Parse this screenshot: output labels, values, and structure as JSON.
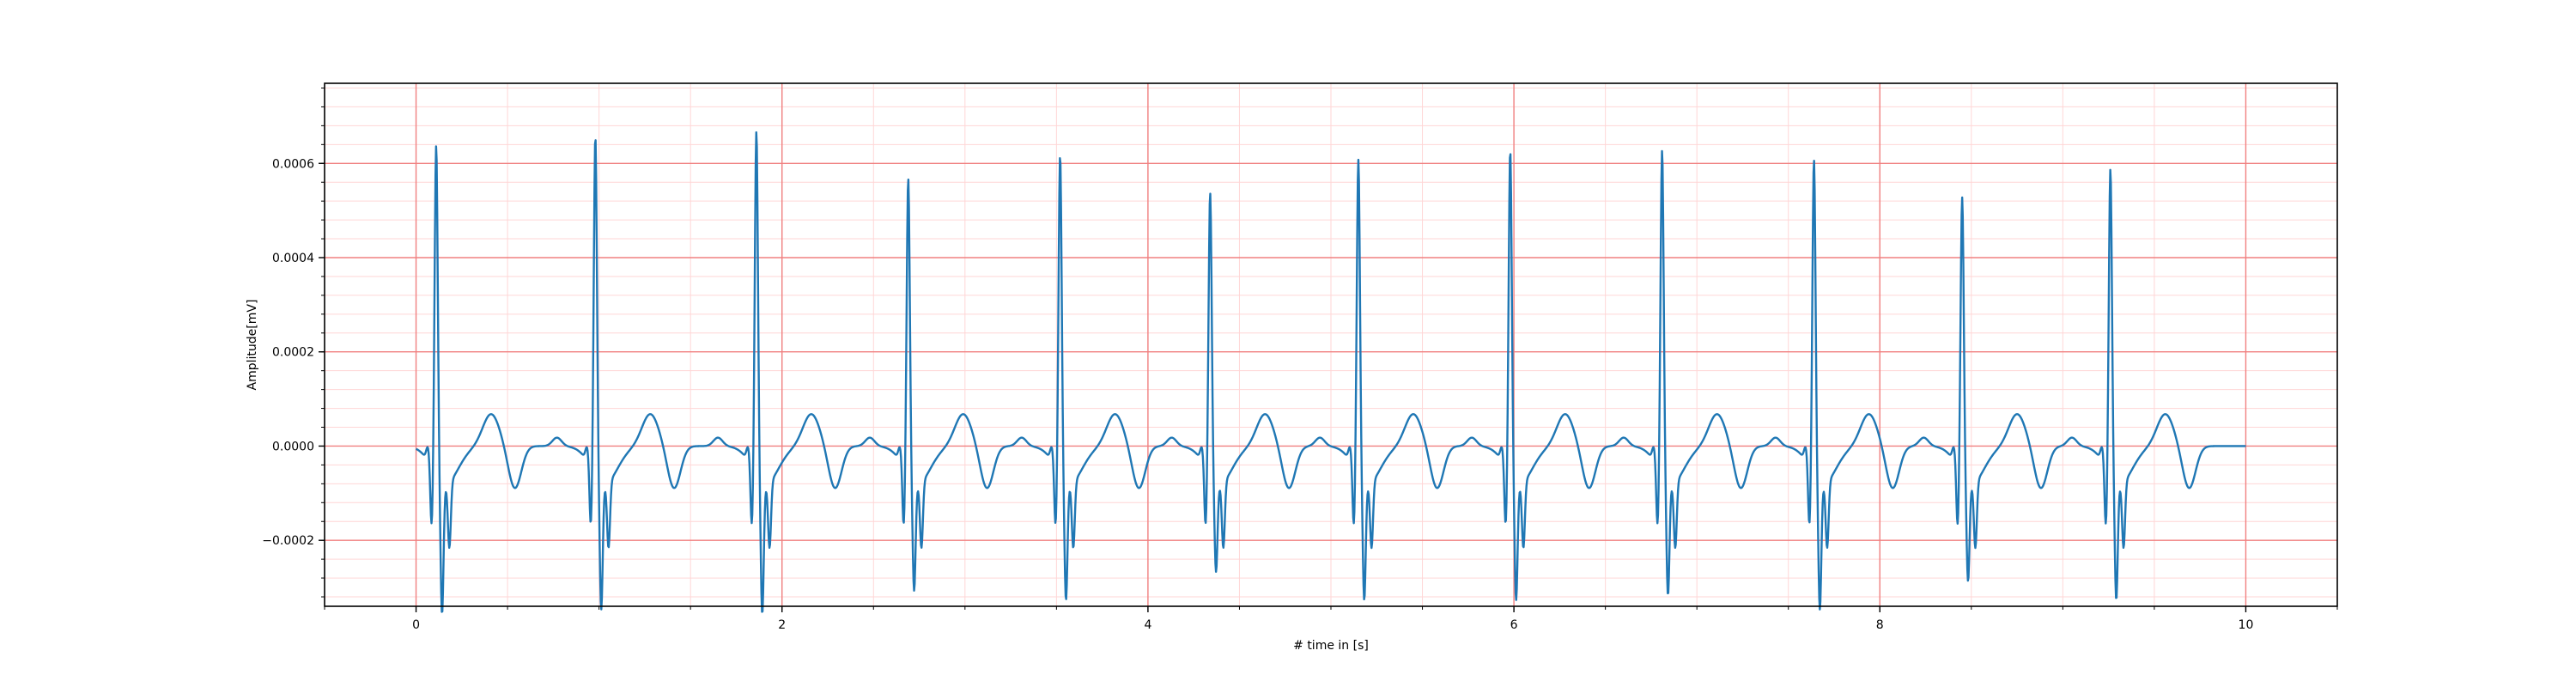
{
  "colors": {
    "background": "#ffffff",
    "major_grid": "#f08080",
    "minor_grid": "#ffd6d6",
    "line": "#1f77b4",
    "axes": "#000000"
  },
  "chart_data": {
    "type": "line",
    "title": "",
    "xlabel": "# time in [s]",
    "ylabel": "Amplitude[mV]",
    "xlim": [
      -0.5,
      10.5
    ],
    "ylim": [
      -0.00034,
      0.00077
    ],
    "xticks": [
      0,
      2,
      4,
      6,
      8,
      10
    ],
    "xtick_labels": [
      "0",
      "2",
      "4",
      "6",
      "8",
      "10"
    ],
    "yticks": [
      -0.0002,
      0.0,
      0.0002,
      0.0004,
      0.0006
    ],
    "ytick_labels": [
      "−0.0002",
      "0.0000",
      "0.0002",
      "0.0004",
      "0.0006"
    ],
    "grid": {
      "major": true,
      "minor": true,
      "minor_x_step": 0.5,
      "minor_y_step": 4e-05
    },
    "legend": "none",
    "series": [
      {
        "name": "",
        "sampling_rate_hz": 100,
        "x_start": 0.0,
        "x_end": 10.0,
        "beat_times_s": [
          0.11,
          0.98,
          1.86,
          2.69,
          3.52,
          4.34,
          5.15,
          5.98,
          6.81,
          7.64,
          8.45,
          9.26
        ],
        "r_peak_mV": [
          0.0007,
          0.00072,
          0.00073,
          0.00063,
          0.00068,
          0.0006,
          0.00067,
          0.00069,
          0.00069,
          0.00067,
          0.00059,
          0.00065
        ],
        "s_trough_mV": [
          -0.00028,
          -0.00027,
          -0.00028,
          -0.00023,
          -0.00025,
          -0.00019,
          -0.00025,
          -0.00025,
          -0.00024,
          -0.00027,
          -0.00021,
          -0.00025
        ]
      }
    ]
  }
}
